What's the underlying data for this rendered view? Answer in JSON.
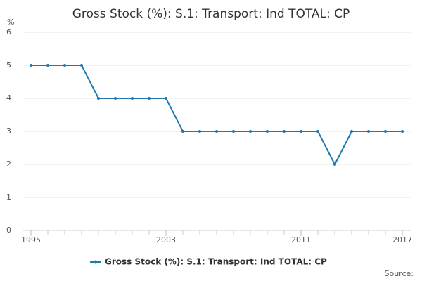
{
  "chart_data": {
    "type": "line",
    "title": "Gross Stock (%): S.1: Transport: Ind TOTAL: CP",
    "y_label": "%",
    "source": "Source:",
    "x": [
      1995,
      1996,
      1997,
      1998,
      1999,
      2000,
      2001,
      2002,
      2003,
      2004,
      2005,
      2006,
      2007,
      2008,
      2009,
      2010,
      2011,
      2012,
      2013,
      2014,
      2015,
      2016,
      2017
    ],
    "series": [
      {
        "name": "Gross Stock (%): S.1: Transport: Ind TOTAL: CP",
        "color": "#1f77b4",
        "values": [
          5,
          5,
          5,
          5,
          4,
          4,
          4,
          4,
          4,
          3,
          3,
          3,
          3,
          3,
          3,
          3,
          3,
          3,
          2,
          3,
          3,
          3,
          3
        ]
      }
    ],
    "xlim": [
      1995,
      2017
    ],
    "xticks": [
      1995,
      2003,
      2011,
      2017
    ],
    "ylim": [
      0,
      6
    ],
    "yticks": [
      0,
      1,
      2,
      3,
      4,
      5,
      6
    ],
    "grid": true
  }
}
